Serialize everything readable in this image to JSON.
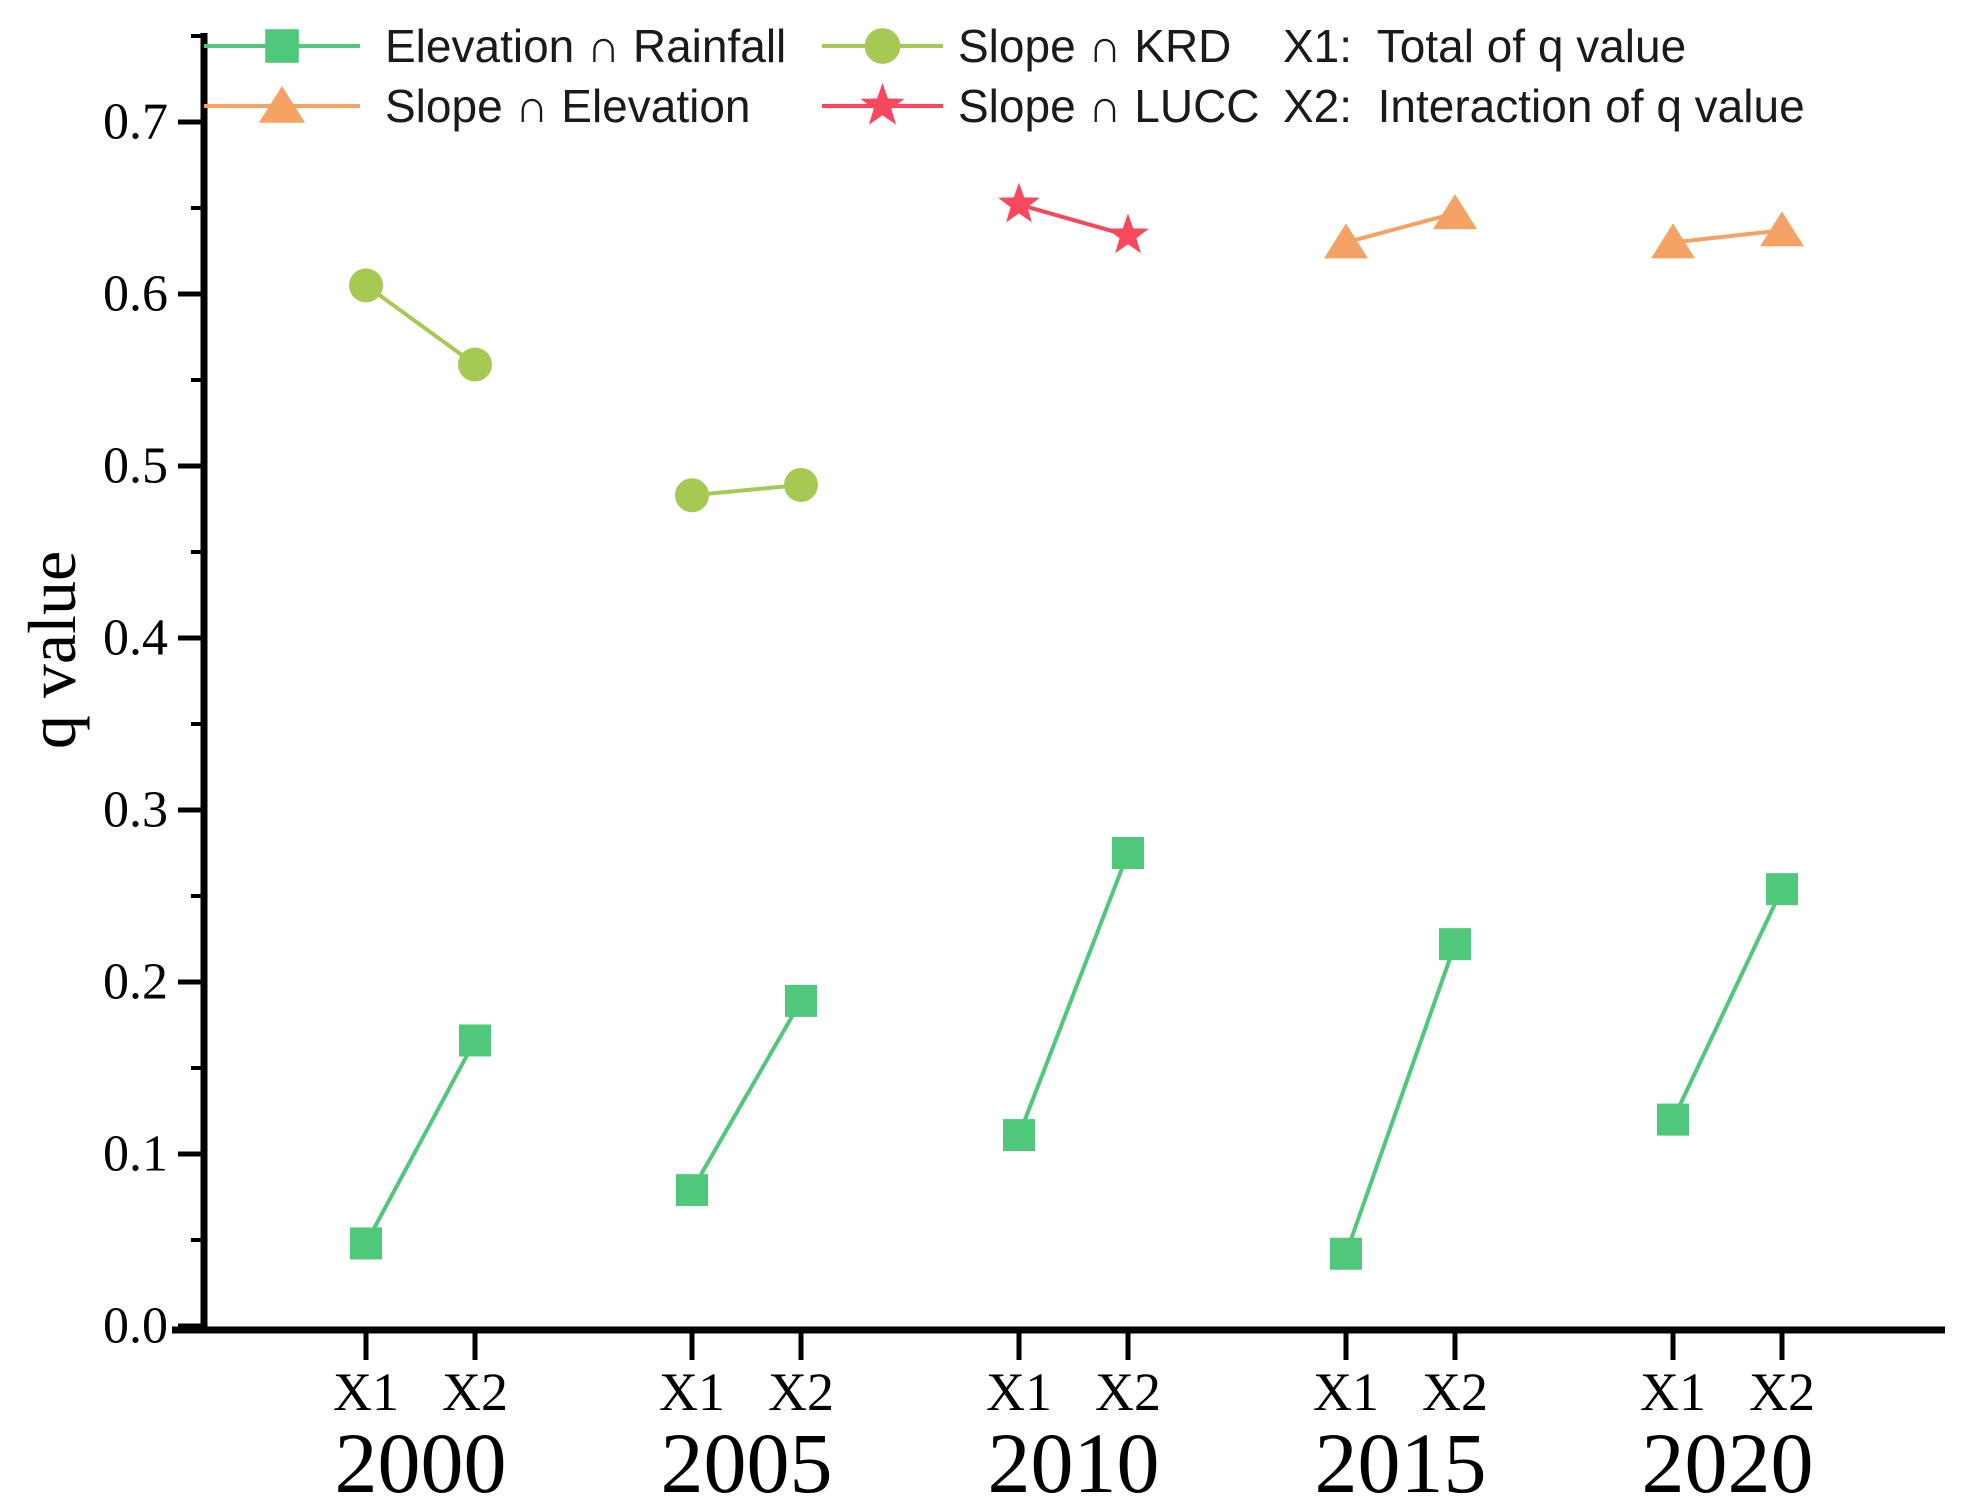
{
  "figure": {
    "background": "#ffffff",
    "axis_color": "#000000",
    "ylabel": "q value",
    "y_tick_labels": [
      "0.0",
      "0.1",
      "0.2",
      "0.3",
      "0.4",
      "0.5",
      "0.6",
      "0.7"
    ],
    "x_sub_labels": [
      "X1",
      "X2"
    ],
    "year_labels": [
      "2000",
      "2005",
      "2010",
      "2015",
      "2020"
    ]
  },
  "chart_data": {
    "type": "line",
    "title": "",
    "xlabel": "",
    "ylabel": "q value",
    "ylim": [
      0,
      0.75
    ],
    "y_major_tick_step": 0.1,
    "y_minor_tick_step": 0.05,
    "grid": "off",
    "legend_position": "top",
    "categories": [
      "2000",
      "2005",
      "2010",
      "2015",
      "2020"
    ],
    "sub_categories": [
      "X1",
      "X2"
    ],
    "series": [
      {
        "name": "Elevation ∩ Rainfall",
        "marker": "square",
        "color": "#50C87C",
        "points": [
          {
            "year": "2000",
            "X1": 0.048,
            "X2": 0.166
          },
          {
            "year": "2005",
            "X1": 0.079,
            "X2": 0.189
          },
          {
            "year": "2010",
            "X1": 0.111,
            "X2": 0.275
          },
          {
            "year": "2015",
            "X1": 0.042,
            "X2": 0.222
          },
          {
            "year": "2020",
            "X1": 0.12,
            "X2": 0.254
          }
        ]
      },
      {
        "name": "Slope ∩ KRD",
        "marker": "circle",
        "color": "#A6C954",
        "points": [
          {
            "year": "2000",
            "X1": 0.605,
            "X2": 0.559
          },
          {
            "year": "2005",
            "X1": 0.483,
            "X2": 0.489
          }
        ]
      },
      {
        "name": "Slope ∩ LUCC",
        "marker": "star",
        "color": "#F8485E",
        "points": [
          {
            "year": "2010",
            "X1": 0.652,
            "X2": 0.634
          }
        ]
      },
      {
        "name": "Slope ∩ Elevation",
        "marker": "triangle",
        "color": "#F5A365",
        "points": [
          {
            "year": "2015",
            "X1": 0.63,
            "X2": 0.647
          },
          {
            "year": "2020",
            "X1": 0.63,
            "X2": 0.637
          }
        ]
      }
    ],
    "legend_notes": [
      "X1:  Total of q value",
      "X2:  Interaction of q value"
    ]
  }
}
